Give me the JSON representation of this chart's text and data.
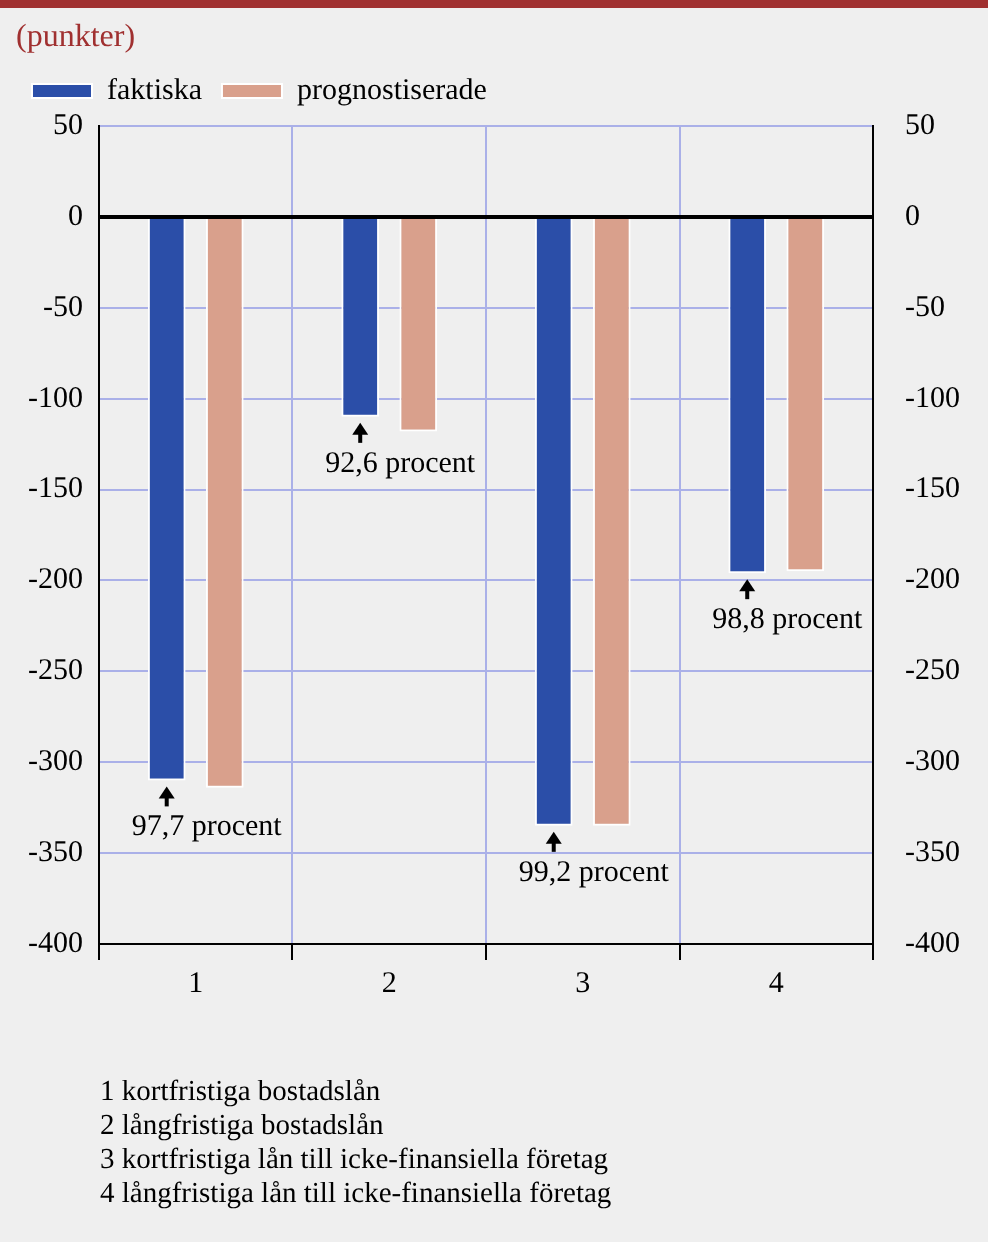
{
  "chart_data": {
    "type": "bar",
    "ylabel": "(punkter)",
    "categories": [
      "1",
      "2",
      "3",
      "4"
    ],
    "series": [
      {
        "name": "faktiska",
        "color": "#2b4ea8",
        "values": [
          -310,
          -110,
          -335,
          -196
        ]
      },
      {
        "name": "prognostiserade",
        "color": "#d9a08c",
        "values": [
          -314,
          -118,
          -335,
          -195
        ]
      }
    ],
    "ylim": [
      -400,
      50
    ],
    "yticks": [
      -400,
      -350,
      -300,
      -250,
      -200,
      -150,
      -100,
      -50,
      0,
      50
    ],
    "y2lim": [
      -400,
      50
    ],
    "y2ticks": [
      -400,
      -350,
      -300,
      -250,
      -200,
      -150,
      -100,
      -50,
      0,
      50
    ],
    "grid": true,
    "legend": "top left",
    "annotations": [
      {
        "text": "97,7 procent",
        "y": -310
      },
      {
        "text": "92,6 procent",
        "y": -110
      },
      {
        "text": "99,2 procent",
        "y": -335
      },
      {
        "text": "98,8 procent",
        "y": -196
      },
      "1 kortfristiga bostadslån",
      "2 långfristiga bostadslån",
      "3 kortfristiga lån till icke-finansiella företag",
      "4 långfristiga lån till icke-finansiella företag"
    ]
  }
}
